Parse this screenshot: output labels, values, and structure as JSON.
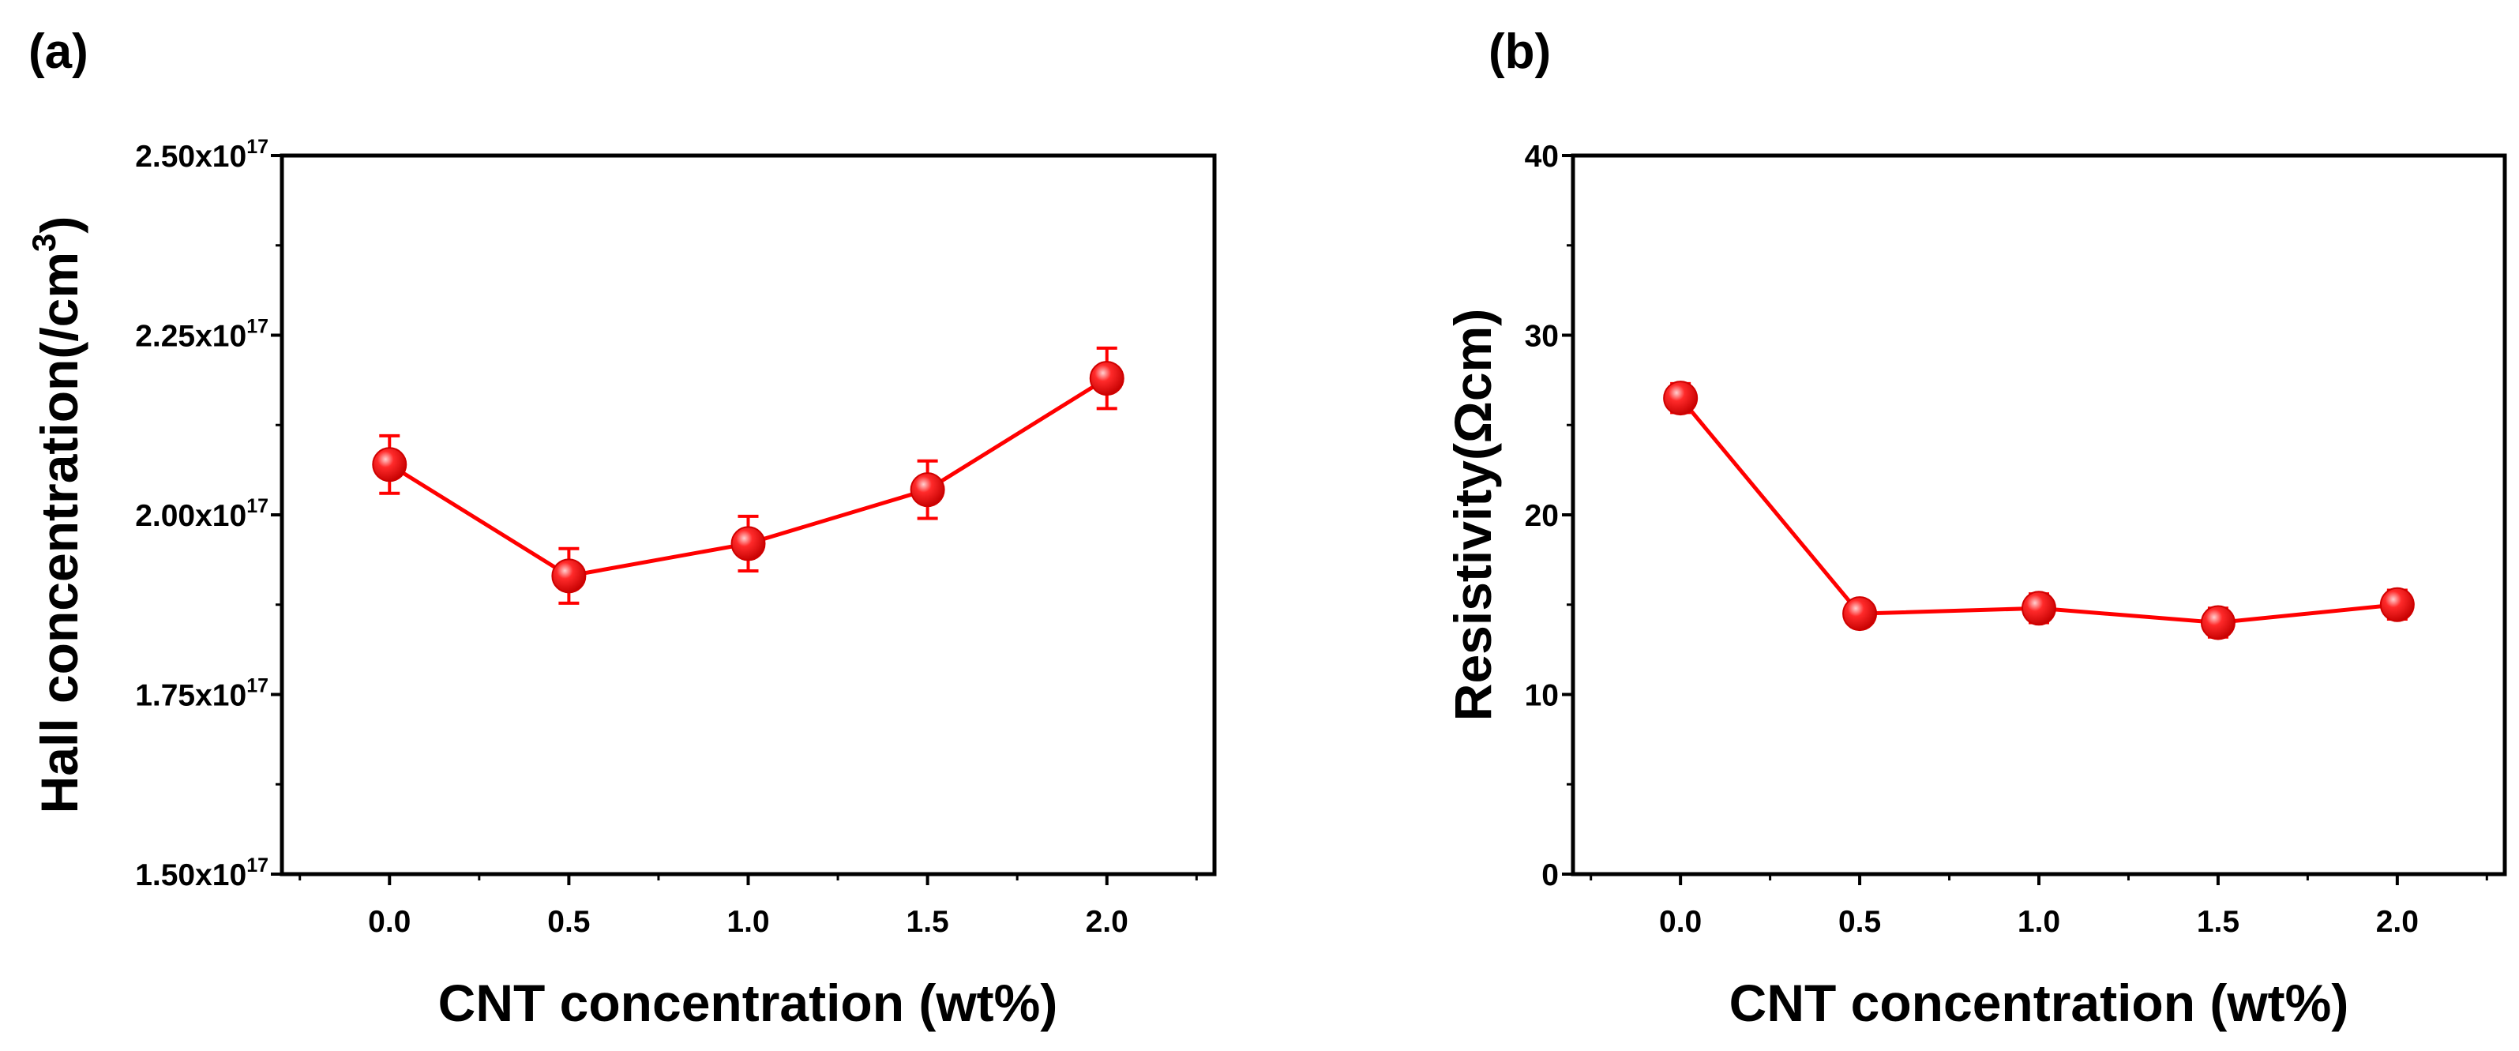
{
  "chart_data": [
    {
      "type": "line",
      "panel_label": "(a)",
      "xlabel": "CNT concentration (wt%)",
      "ylabel": "Hall concentration(/cm",
      "ylabel_sup": "3",
      "ylabel_close": ")",
      "xlim": [
        -0.3,
        2.3
      ],
      "ylim": [
        1.5e+17,
        2.5e+17
      ],
      "x_ticks": [
        0.0,
        0.5,
        1.0,
        1.5,
        2.0
      ],
      "x_tick_labels": [
        "0.0",
        "0.5",
        "1.0",
        "1.5",
        "2.0"
      ],
      "y_ticks": [
        1.5e+17,
        1.75e+17,
        2e+17,
        2.25e+17,
        2.5e+17
      ],
      "y_tick_labels": [
        {
          "mantissa": "1.50x10",
          "exp": "17"
        },
        {
          "mantissa": "1.75x10",
          "exp": "17"
        },
        {
          "mantissa": "2.00x10",
          "exp": "17"
        },
        {
          "mantissa": "2.25x10",
          "exp": "17"
        },
        {
          "mantissa": "2.50x10",
          "exp": "17"
        }
      ],
      "grid": false,
      "series": [
        {
          "name": "Hall concentration",
          "color": "#ff0000",
          "x": [
            0.0,
            0.5,
            1.0,
            1.5,
            2.0
          ],
          "values": [
            2.07e+17,
            1.915e+17,
            1.96e+17,
            2.035e+17,
            2.19e+17
          ],
          "errors": [
            4000000000000000.0,
            3800000000000000.0,
            3800000000000000.0,
            4000000000000000.0,
            4200000000000000.0
          ]
        }
      ]
    },
    {
      "type": "line",
      "panel_label": "(b)",
      "xlabel": "CNT concentration (wt%)",
      "ylabel": "Resistivity(Ωcm)",
      "xlim": [
        -0.3,
        2.3
      ],
      "ylim": [
        0,
        40
      ],
      "x_ticks": [
        0.0,
        0.5,
        1.0,
        1.5,
        2.0
      ],
      "x_tick_labels": [
        "0.0",
        "0.5",
        "1.0",
        "1.5",
        "2.0"
      ],
      "y_ticks": [
        0,
        10,
        20,
        30,
        40
      ],
      "y_tick_labels": [
        "0",
        "10",
        "20",
        "30",
        "40"
      ],
      "grid": false,
      "series": [
        {
          "name": "Resistivity",
          "color": "#ff0000",
          "x": [
            0.0,
            0.5,
            1.0,
            1.5,
            2.0
          ],
          "values": [
            26.5,
            14.5,
            14.8,
            14.0,
            15.0
          ],
          "errors": [
            0.8,
            0.7,
            0.8,
            0.8,
            0.8
          ]
        }
      ]
    }
  ]
}
